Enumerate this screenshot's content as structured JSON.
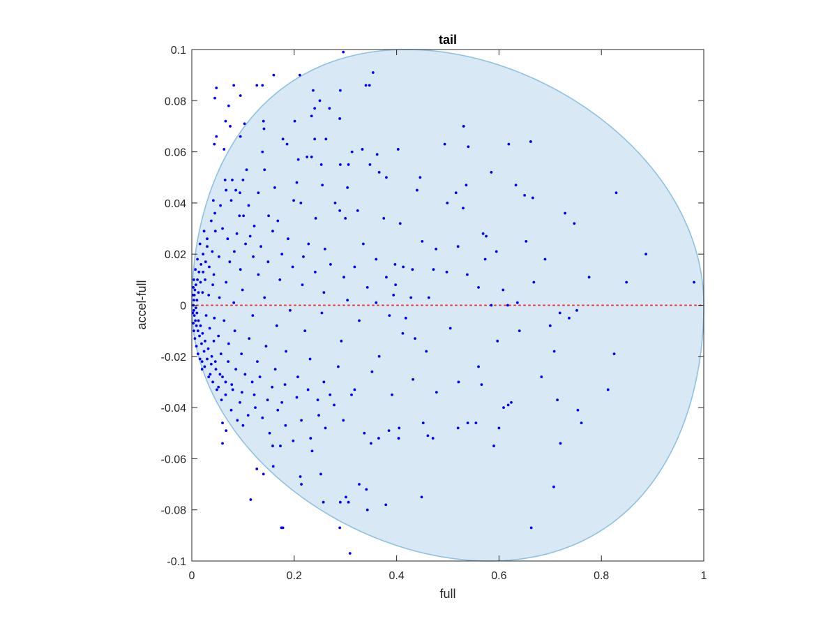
{
  "chart_data": {
    "type": "scatter",
    "title": "tail",
    "xlabel": "full",
    "ylabel": "accel-full",
    "xlim": [
      0,
      1
    ],
    "ylim": [
      -0.1,
      0.1
    ],
    "xticks": [
      0,
      0.2,
      0.4,
      0.6,
      0.8,
      1
    ],
    "xtick_labels": [
      "0",
      "0.2",
      "0.4",
      "0.6",
      "0.8",
      "1"
    ],
    "yticks": [
      -0.1,
      -0.08,
      -0.06,
      -0.04,
      -0.02,
      0,
      0.02,
      0.04,
      0.06,
      0.08,
      0.1
    ],
    "ytick_labels": [
      "-0.1",
      "-0.08",
      "-0.06",
      "-0.04",
      "-0.02",
      "0",
      "0.02",
      "0.04",
      "0.06",
      "0.08",
      "0.1"
    ],
    "grid": false,
    "reference_line": {
      "y": 0,
      "color": "#e8353a",
      "style": "dotted"
    },
    "region": {
      "shape": "ellipse",
      "fill": "#d8e8f4",
      "edge": "#8fc1e2",
      "cx": 0.5,
      "cy": 0,
      "rx": 0.5,
      "ry": 0.1,
      "cx_note": "",
      "vertical_axis_x": 0.5,
      "top_peak_x": 0.41,
      "bottom_peak_x": 0.59
    },
    "point_color": "#0000ff",
    "points": [
      [
        0.296,
        0.099
      ],
      [
        0.16,
        0.09
      ],
      [
        0.211,
        0.09
      ],
      [
        0.354,
        0.091
      ],
      [
        0.048,
        0.085
      ],
      [
        0.082,
        0.086
      ],
      [
        0.127,
        0.086
      ],
      [
        0.138,
        0.086
      ],
      [
        0.34,
        0.086
      ],
      [
        0.347,
        0.086
      ],
      [
        0.237,
        0.084
      ],
      [
        0.29,
        0.084
      ],
      [
        0.045,
        0.081
      ],
      [
        0.095,
        0.082
      ],
      [
        0.25,
        0.08
      ],
      [
        0.072,
        0.078
      ],
      [
        0.269,
        0.077
      ],
      [
        0.24,
        0.077
      ],
      [
        0.066,
        0.072
      ],
      [
        0.103,
        0.071
      ],
      [
        0.14,
        0.072
      ],
      [
        0.201,
        0.072
      ],
      [
        0.234,
        0.074
      ],
      [
        0.289,
        0.073
      ],
      [
        0.531,
        0.07
      ],
      [
        0.141,
        0.069
      ],
      [
        0.075,
        0.07
      ],
      [
        0.048,
        0.066
      ],
      [
        0.095,
        0.066
      ],
      [
        0.262,
        0.065
      ],
      [
        0.24,
        0.065
      ],
      [
        0.178,
        0.065
      ],
      [
        0.044,
        0.063
      ],
      [
        0.619,
        0.063
      ],
      [
        0.662,
        0.064
      ],
      [
        0.494,
        0.063
      ],
      [
        0.54,
        0.062
      ],
      [
        0.403,
        0.061
      ],
      [
        0.186,
        0.063
      ],
      [
        0.063,
        0.061
      ],
      [
        0.138,
        0.06
      ],
      [
        0.313,
        0.06
      ],
      [
        0.333,
        0.061
      ],
      [
        0.362,
        0.059
      ],
      [
        0.225,
        0.058
      ],
      [
        0.208,
        0.057
      ],
      [
        0.234,
        0.058
      ],
      [
        0.253,
        0.055
      ],
      [
        0.29,
        0.055
      ],
      [
        0.306,
        0.055
      ],
      [
        0.348,
        0.055
      ],
      [
        0.107,
        0.053
      ],
      [
        0.142,
        0.053
      ],
      [
        0.585,
        0.052
      ],
      [
        0.366,
        0.052
      ],
      [
        0.38,
        0.05
      ],
      [
        0.446,
        0.05
      ],
      [
        0.065,
        0.049
      ],
      [
        0.1,
        0.049
      ],
      [
        0.205,
        0.048
      ],
      [
        0.255,
        0.047
      ],
      [
        0.304,
        0.046
      ],
      [
        0.536,
        0.047
      ],
      [
        0.633,
        0.047
      ],
      [
        0.086,
        0.045
      ],
      [
        0.162,
        0.046
      ],
      [
        0.44,
        0.045
      ],
      [
        0.516,
        0.044
      ],
      [
        0.094,
        0.044
      ],
      [
        0.13,
        0.044
      ],
      [
        0.65,
        0.043
      ],
      [
        0.666,
        0.042
      ],
      [
        0.829,
        0.044
      ],
      [
        0.042,
        0.041
      ],
      [
        0.077,
        0.041
      ],
      [
        0.199,
        0.041
      ],
      [
        0.213,
        0.04
      ],
      [
        0.28,
        0.04
      ],
      [
        0.499,
        0.04
      ],
      [
        0.289,
        0.037
      ],
      [
        0.324,
        0.037
      ],
      [
        0.53,
        0.038
      ],
      [
        0.729,
        0.036
      ],
      [
        0.747,
        0.032
      ],
      [
        0.045,
        0.036
      ],
      [
        0.101,
        0.035
      ],
      [
        0.15,
        0.035
      ],
      [
        0.168,
        0.033
      ],
      [
        0.242,
        0.034
      ],
      [
        0.3,
        0.034
      ],
      [
        0.375,
        0.034
      ],
      [
        0.407,
        0.032
      ],
      [
        0.569,
        0.028
      ],
      [
        0.575,
        0.027
      ],
      [
        0.653,
        0.025
      ],
      [
        0.45,
        0.025
      ],
      [
        0.477,
        0.022
      ],
      [
        0.52,
        0.023
      ],
      [
        0.595,
        0.021
      ],
      [
        0.69,
        0.018
      ],
      [
        0.887,
        0.02
      ],
      [
        0.06,
        0.03
      ],
      [
        0.088,
        0.028
      ],
      [
        0.114,
        0.027
      ],
      [
        0.158,
        0.029
      ],
      [
        0.188,
        0.026
      ],
      [
        0.228,
        0.024
      ],
      [
        0.26,
        0.022
      ],
      [
        0.335,
        0.024
      ],
      [
        0.36,
        0.018
      ],
      [
        0.397,
        0.016
      ],
      [
        0.413,
        0.015
      ],
      [
        0.38,
        0.011
      ],
      [
        0.398,
        0.008
      ],
      [
        0.431,
        0.014
      ],
      [
        0.472,
        0.014
      ],
      [
        0.498,
        0.013
      ],
      [
        0.538,
        0.012
      ],
      [
        0.573,
        0.018
      ],
      [
        0.776,
        0.011
      ],
      [
        0.849,
        0.009
      ],
      [
        0.981,
        0.009
      ],
      [
        0.668,
        0.009
      ],
      [
        0.608,
        0.006
      ],
      [
        0.56,
        0.007
      ],
      [
        0.463,
        0.003
      ],
      [
        0.428,
        0.003
      ],
      [
        0.36,
        0.001
      ],
      [
        0.304,
        0.002
      ],
      [
        0.258,
        0.005
      ],
      [
        0.216,
        0.008
      ],
      [
        0.172,
        0.01
      ],
      [
        0.13,
        0.012
      ],
      [
        0.095,
        0.014
      ],
      [
        0.074,
        0.017
      ],
      [
        0.053,
        0.019
      ],
      [
        0.04,
        0.021
      ],
      [
        0.03,
        0.023
      ],
      [
        0.022,
        0.02
      ],
      [
        0.018,
        0.016
      ],
      [
        0.014,
        0.013
      ],
      [
        0.011,
        0.01
      ],
      [
        0.008,
        0.008
      ],
      [
        0.006,
        0.006
      ],
      [
        0.005,
        0.004
      ],
      [
        0.004,
        0.002
      ],
      [
        0.003,
        0.0
      ],
      [
        0.004,
        -0.002
      ],
      [
        0.005,
        -0.004
      ],
      [
        0.007,
        -0.006
      ],
      [
        0.009,
        -0.008
      ],
      [
        0.012,
        -0.01
      ],
      [
        0.015,
        -0.012
      ],
      [
        0.019,
        -0.015
      ],
      [
        0.024,
        -0.018
      ],
      [
        0.03,
        -0.021
      ],
      [
        0.038,
        -0.023
      ],
      [
        0.047,
        -0.025
      ],
      [
        0.06,
        -0.028
      ],
      [
        0.078,
        -0.031
      ],
      [
        0.098,
        -0.034
      ],
      [
        0.122,
        -0.035
      ],
      [
        0.148,
        -0.037
      ],
      [
        0.176,
        -0.038
      ],
      [
        0.021,
        0.005
      ],
      [
        0.026,
        0.01
      ],
      [
        0.033,
        0.004
      ],
      [
        0.041,
        0.008
      ],
      [
        0.028,
        -0.004
      ],
      [
        0.035,
        -0.009
      ],
      [
        0.044,
        -0.005
      ],
      [
        0.052,
        -0.012
      ],
      [
        0.063,
        -0.006
      ],
      [
        0.072,
        -0.015
      ],
      [
        0.084,
        -0.01
      ],
      [
        0.097,
        -0.019
      ],
      [
        0.112,
        -0.013
      ],
      [
        0.128,
        -0.022
      ],
      [
        0.145,
        -0.016
      ],
      [
        0.163,
        -0.025
      ],
      [
        0.184,
        -0.018
      ],
      [
        0.207,
        -0.028
      ],
      [
        0.231,
        -0.021
      ],
      [
        0.258,
        -0.03
      ],
      [
        0.286,
        -0.024
      ],
      [
        0.318,
        -0.033
      ],
      [
        0.352,
        -0.026
      ],
      [
        0.391,
        -0.035
      ],
      [
        0.432,
        -0.029
      ],
      [
        0.478,
        -0.034
      ],
      [
        0.521,
        -0.03
      ],
      [
        0.566,
        -0.031
      ],
      [
        0.618,
        -0.039
      ],
      [
        0.683,
        -0.028
      ],
      [
        0.708,
        -0.018
      ],
      [
        0.737,
        -0.005
      ],
      [
        0.7,
        -0.008
      ],
      [
        0.64,
        -0.01
      ],
      [
        0.597,
        -0.014
      ],
      [
        0.56,
        -0.024
      ],
      [
        0.505,
        -0.009
      ],
      [
        0.458,
        -0.018
      ],
      [
        0.412,
        -0.011
      ],
      [
        0.366,
        -0.02
      ],
      [
        0.327,
        -0.006
      ],
      [
        0.292,
        -0.014
      ],
      [
        0.254,
        -0.003
      ],
      [
        0.221,
        -0.01
      ],
      [
        0.192,
        -0.002
      ],
      [
        0.166,
        -0.008
      ],
      [
        0.142,
        0.003
      ],
      [
        0.119,
        -0.004
      ],
      [
        0.099,
        0.006
      ],
      [
        0.082,
        0.001
      ],
      [
        0.067,
        0.009
      ],
      [
        0.054,
        0.003
      ],
      [
        0.043,
        0.012
      ],
      [
        0.034,
        0.015
      ],
      [
        0.027,
        0.017
      ],
      [
        0.022,
        0.013
      ],
      [
        0.017,
        0.009
      ],
      [
        0.013,
        0.005
      ],
      [
        0.01,
        0.002
      ],
      [
        0.008,
        -0.001
      ],
      [
        0.01,
        -0.003
      ],
      [
        0.013,
        -0.006
      ],
      [
        0.017,
        -0.008
      ],
      [
        0.021,
        -0.011
      ],
      [
        0.026,
        -0.014
      ],
      [
        0.032,
        -0.017
      ],
      [
        0.039,
        -0.02
      ],
      [
        0.046,
        -0.022
      ],
      [
        0.055,
        -0.027
      ],
      [
        0.066,
        -0.03
      ],
      [
        0.08,
        -0.033
      ],
      [
        0.094,
        -0.038
      ],
      [
        0.058,
        -0.037
      ],
      [
        0.049,
        -0.033
      ],
      [
        0.041,
        -0.03
      ],
      [
        0.036,
        -0.027
      ],
      [
        0.06,
        -0.046
      ],
      [
        0.067,
        -0.049
      ],
      [
        0.06,
        -0.054
      ],
      [
        0.1,
        -0.047
      ],
      [
        0.115,
        -0.076
      ],
      [
        0.127,
        -0.064
      ],
      [
        0.14,
        -0.066
      ],
      [
        0.159,
        -0.063
      ],
      [
        0.158,
        -0.055
      ],
      [
        0.173,
        -0.055
      ],
      [
        0.175,
        -0.087
      ],
      [
        0.178,
        -0.087
      ],
      [
        0.212,
        -0.067
      ],
      [
        0.214,
        -0.07
      ],
      [
        0.235,
        -0.057
      ],
      [
        0.252,
        -0.066
      ],
      [
        0.257,
        -0.077
      ],
      [
        0.29,
        -0.077
      ],
      [
        0.289,
        -0.087
      ],
      [
        0.301,
        -0.075
      ],
      [
        0.306,
        -0.077
      ],
      [
        0.309,
        -0.097
      ],
      [
        0.327,
        -0.07
      ],
      [
        0.341,
        -0.072
      ],
      [
        0.343,
        -0.08
      ],
      [
        0.379,
        -0.078
      ],
      [
        0.449,
        -0.075
      ],
      [
        0.337,
        -0.05
      ],
      [
        0.35,
        -0.054
      ],
      [
        0.365,
        -0.052
      ],
      [
        0.385,
        -0.049
      ],
      [
        0.404,
        -0.052
      ],
      [
        0.405,
        -0.048
      ],
      [
        0.452,
        -0.046
      ],
      [
        0.461,
        -0.051
      ],
      [
        0.471,
        -0.052
      ],
      [
        0.52,
        -0.048
      ],
      [
        0.539,
        -0.046
      ],
      [
        0.555,
        -0.046
      ],
      [
        0.59,
        -0.055
      ],
      [
        0.6,
        -0.048
      ],
      [
        0.609,
        -0.04
      ],
      [
        0.624,
        -0.038
      ],
      [
        0.663,
        -0.087
      ],
      [
        0.707,
        -0.071
      ],
      [
        0.714,
        -0.037
      ],
      [
        0.72,
        -0.054
      ],
      [
        0.754,
        -0.041
      ],
      [
        0.761,
        -0.046
      ],
      [
        0.813,
        -0.033
      ],
      [
        0.825,
        -0.019
      ],
      [
        0.585,
        0.0
      ],
      [
        0.617,
        0.0
      ],
      [
        0.636,
        0.001
      ],
      [
        0.719,
        -0.003
      ],
      [
        0.752,
        -0.002
      ],
      [
        0.386,
        -0.004
      ],
      [
        0.394,
        0.004
      ],
      [
        0.418,
        -0.005
      ],
      [
        0.436,
        -0.013
      ],
      [
        0.312,
        -0.035
      ],
      [
        0.296,
        -0.045
      ],
      [
        0.278,
        -0.039
      ],
      [
        0.261,
        -0.048
      ],
      [
        0.248,
        -0.043
      ],
      [
        0.232,
        -0.052
      ],
      [
        0.214,
        -0.045
      ],
      [
        0.198,
        -0.053
      ],
      [
        0.183,
        -0.047
      ],
      [
        0.168,
        -0.041
      ],
      [
        0.152,
        -0.05
      ],
      [
        0.138,
        -0.044
      ],
      [
        0.124,
        -0.04
      ],
      [
        0.11,
        -0.043
      ],
      [
        0.089,
        -0.045
      ],
      [
        0.077,
        -0.041
      ],
      [
        0.066,
        -0.035
      ],
      [
        0.052,
        -0.032
      ],
      [
        0.025,
        -0.024
      ],
      [
        0.02,
        -0.022
      ],
      [
        0.033,
        -0.028
      ],
      [
        0.07,
        0.026
      ],
      [
        0.083,
        0.021
      ],
      [
        0.105,
        0.024
      ],
      [
        0.12,
        0.019
      ],
      [
        0.135,
        0.023
      ],
      [
        0.149,
        0.017
      ],
      [
        0.176,
        0.02
      ],
      [
        0.197,
        0.015
      ],
      [
        0.218,
        0.019
      ],
      [
        0.241,
        0.013
      ],
      [
        0.271,
        0.016
      ],
      [
        0.297,
        0.011
      ],
      [
        0.318,
        0.015
      ],
      [
        0.343,
        0.007
      ],
      [
        0.056,
        0.039
      ],
      [
        0.067,
        0.045
      ],
      [
        0.079,
        0.049
      ],
      [
        0.093,
        0.035
      ],
      [
        0.111,
        0.039
      ],
      [
        0.122,
        0.031
      ],
      [
        0.046,
        0.029
      ],
      [
        0.038,
        0.033
      ],
      [
        0.03,
        0.026
      ],
      [
        0.024,
        0.029
      ],
      [
        0.016,
        0.024
      ],
      [
        0.011,
        0.018
      ],
      [
        0.007,
        0.014
      ],
      [
        0.004,
        0.01
      ],
      [
        0.003,
        0.007
      ],
      [
        0.002,
        0.004
      ],
      [
        0.002,
        -0.003
      ],
      [
        0.003,
        -0.007
      ],
      [
        0.004,
        -0.01
      ],
      [
        0.006,
        -0.013
      ],
      [
        0.009,
        -0.016
      ],
      [
        0.012,
        -0.019
      ],
      [
        0.016,
        -0.021
      ],
      [
        0.02,
        -0.025
      ],
      [
        0.043,
        -0.014
      ],
      [
        0.057,
        -0.019
      ],
      [
        0.071,
        -0.022
      ],
      [
        0.086,
        -0.025
      ],
      [
        0.104,
        -0.027
      ],
      [
        0.118,
        -0.03
      ],
      [
        0.133,
        -0.028
      ],
      [
        0.157,
        -0.032
      ],
      [
        0.182,
        -0.031
      ],
      [
        0.205,
        -0.036
      ],
      [
        0.227,
        -0.033
      ],
      [
        0.246,
        -0.037
      ],
      [
        0.27,
        -0.035
      ]
    ]
  }
}
